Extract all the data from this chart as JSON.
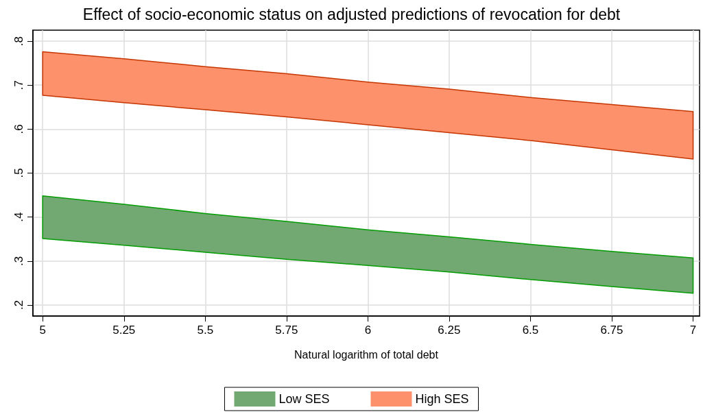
{
  "chart_data": {
    "type": "area",
    "title": "Effect of socio-economic status on adjusted predictions of revocation for debt",
    "xlabel": "Natural logarithm of total debt",
    "x": [
      5,
      5.25,
      5.5,
      5.75,
      6,
      6.25,
      6.5,
      6.75,
      7
    ],
    "series": [
      {
        "name": "Low SES",
        "color": "#72a972",
        "values": [
          null,
          null,
          null,
          null,
          null,
          null,
          null,
          null,
          null
        ],
        "lower": [
          0.351,
          0.336,
          0.32,
          0.304,
          0.29,
          0.275,
          0.258,
          0.242,
          0.227
        ],
        "upper": [
          0.448,
          0.429,
          0.408,
          0.39,
          0.371,
          0.355,
          0.338,
          0.322,
          0.307
        ]
      },
      {
        "name": "High SES",
        "color": "#fd916b",
        "values": [
          null,
          null,
          null,
          null,
          null,
          null,
          null,
          null,
          null
        ],
        "lower": [
          0.677,
          0.66,
          0.644,
          0.628,
          0.61,
          0.592,
          0.574,
          0.553,
          0.532
        ],
        "upper": [
          0.776,
          0.76,
          0.742,
          0.726,
          0.707,
          0.691,
          0.672,
          0.656,
          0.64
        ]
      }
    ],
    "xlim": [
      4.97,
      7.02
    ],
    "xticks": [
      5,
      5.25,
      5.5,
      5.75,
      6,
      6.25,
      6.5,
      6.75,
      7
    ],
    "ylim": [
      0.175,
      0.825
    ],
    "yticks": [
      {
        "value": 0.2,
        "label": ".2"
      },
      {
        "value": 0.3,
        "label": ".3"
      },
      {
        "value": 0.4,
        "label": ".4"
      },
      {
        "value": 0.5,
        "label": ".5"
      },
      {
        "value": 0.6,
        "label": ".6"
      },
      {
        "value": 0.7,
        "label": ".7"
      },
      {
        "value": 0.8,
        "label": ".8"
      }
    ],
    "grid": true,
    "legend": "bottom"
  }
}
